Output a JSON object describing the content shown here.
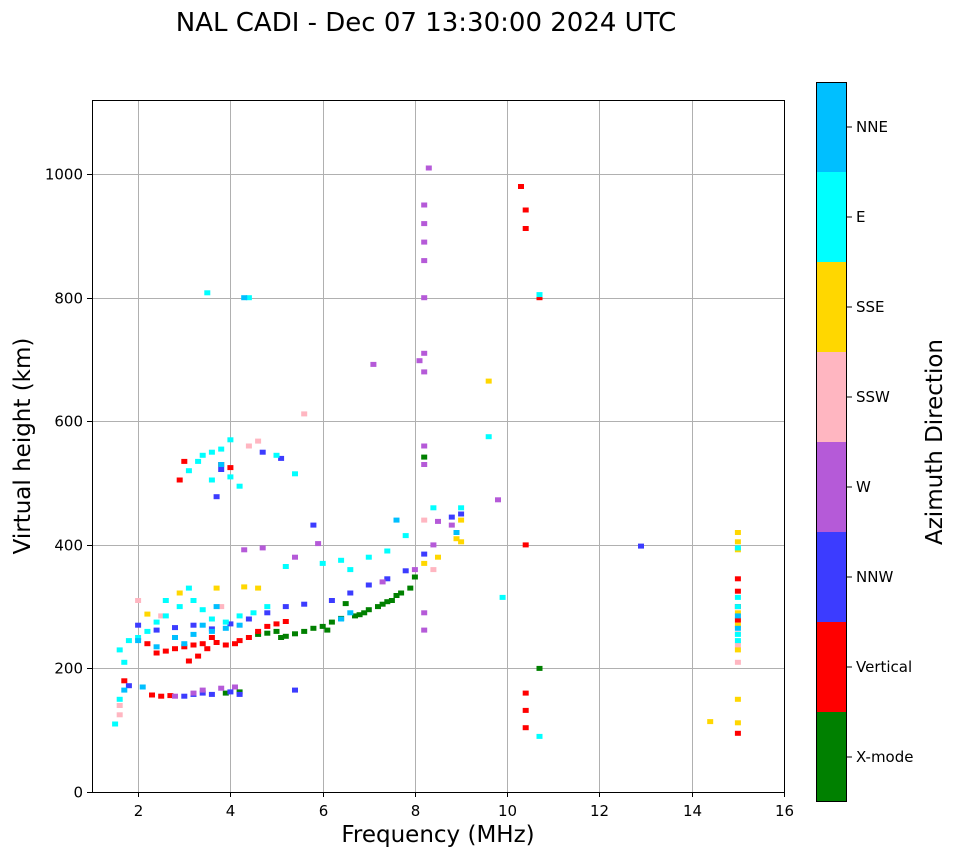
{
  "chart_data": {
    "type": "scatter",
    "title": "NAL CADI - Dec 07 13:30:00 2024 UTC",
    "xlabel": "Frequency (MHz)",
    "ylabel": "Virtual height (km)",
    "xlim": [
      1,
      16
    ],
    "ylim": [
      0,
      1120
    ],
    "xticks": [
      2,
      4,
      6,
      8,
      10,
      12,
      14,
      16
    ],
    "yticks": [
      0,
      200,
      400,
      600,
      800,
      1000
    ],
    "grid": true,
    "colorbar": {
      "label": "Azimuth Direction",
      "categories": [
        {
          "name": "X-mode",
          "color": "#008000"
        },
        {
          "name": "Vertical",
          "color": "#ff0000"
        },
        {
          "name": "NNW",
          "color": "#3c3cff"
        },
        {
          "name": "W",
          "color": "#b55ad8"
        },
        {
          "name": "SSW",
          "color": "#ffb6c1"
        },
        {
          "name": "SSE",
          "color": "#ffd700"
        },
        {
          "name": "E",
          "color": "#00ffff"
        },
        {
          "name": "NNE",
          "color": "#00bfff"
        }
      ]
    },
    "series": [
      {
        "name": "X-mode",
        "points": [
          [
            4.6,
            255
          ],
          [
            4.8,
            257
          ],
          [
            5.0,
            260
          ],
          [
            5.2,
            252
          ],
          [
            5.4,
            256
          ],
          [
            5.6,
            260
          ],
          [
            5.8,
            265
          ],
          [
            6.0,
            268
          ],
          [
            6.2,
            275
          ],
          [
            6.4,
            281
          ],
          [
            6.5,
            305
          ],
          [
            6.7,
            285
          ],
          [
            6.9,
            290
          ],
          [
            7.0,
            295
          ],
          [
            7.2,
            300
          ],
          [
            7.3,
            304
          ],
          [
            7.5,
            310
          ],
          [
            7.6,
            318
          ],
          [
            7.7,
            322
          ],
          [
            7.9,
            330
          ],
          [
            8.0,
            348
          ],
          [
            8.2,
            542
          ],
          [
            10.7,
            200
          ],
          [
            3.9,
            160
          ],
          [
            4.2,
            162
          ],
          [
            5.1,
            250
          ],
          [
            6.1,
            262
          ],
          [
            6.8,
            287
          ],
          [
            7.4,
            308
          ]
        ]
      },
      {
        "name": "Vertical",
        "points": [
          [
            2.4,
            225
          ],
          [
            2.6,
            228
          ],
          [
            2.8,
            232
          ],
          [
            3.0,
            235
          ],
          [
            3.1,
            212
          ],
          [
            3.2,
            238
          ],
          [
            3.4,
            240
          ],
          [
            3.5,
            232
          ],
          [
            3.7,
            242
          ],
          [
            3.9,
            238
          ],
          [
            4.1,
            240
          ],
          [
            4.2,
            245
          ],
          [
            4.4,
            250
          ],
          [
            4.6,
            260
          ],
          [
            4.8,
            268
          ],
          [
            5.0,
            272
          ],
          [
            5.2,
            276
          ],
          [
            1.7,
            180
          ],
          [
            2.3,
            157
          ],
          [
            2.5,
            155
          ],
          [
            2.7,
            156
          ],
          [
            3.0,
            535
          ],
          [
            3.8,
            530
          ],
          [
            4.0,
            525
          ],
          [
            2.9,
            505
          ],
          [
            10.3,
            980
          ],
          [
            10.4,
            942
          ],
          [
            10.4,
            912
          ],
          [
            10.4,
            400
          ],
          [
            10.4,
            160
          ],
          [
            10.4,
            132
          ],
          [
            10.4,
            104
          ],
          [
            10.7,
            800
          ],
          [
            15.0,
            95
          ],
          [
            15.0,
            278
          ],
          [
            15.0,
            300
          ],
          [
            15.0,
            325
          ],
          [
            15.0,
            345
          ],
          [
            3.3,
            220
          ],
          [
            3.6,
            250
          ],
          [
            2.2,
            240
          ]
        ]
      },
      {
        "name": "NNW",
        "points": [
          [
            3.0,
            155
          ],
          [
            3.2,
            158
          ],
          [
            3.4,
            160
          ],
          [
            3.6,
            158
          ],
          [
            4.0,
            162
          ],
          [
            4.2,
            158
          ],
          [
            5.4,
            165
          ],
          [
            2.0,
            270
          ],
          [
            2.4,
            262
          ],
          [
            2.8,
            266
          ],
          [
            3.2,
            270
          ],
          [
            3.6,
            264
          ],
          [
            4.0,
            272
          ],
          [
            4.4,
            280
          ],
          [
            4.8,
            290
          ],
          [
            5.2,
            300
          ],
          [
            5.6,
            304
          ],
          [
            6.2,
            310
          ],
          [
            6.6,
            322
          ],
          [
            7.0,
            335
          ],
          [
            7.4,
            345
          ],
          [
            7.8,
            358
          ],
          [
            8.2,
            385
          ],
          [
            8.8,
            445
          ],
          [
            9.0,
            450
          ],
          [
            12.9,
            398
          ],
          [
            3.8,
            522
          ],
          [
            3.7,
            478
          ],
          [
            4.7,
            550
          ],
          [
            1.8,
            172
          ],
          [
            5.1,
            540
          ],
          [
            5.8,
            432
          ]
        ]
      },
      {
        "name": "W",
        "points": [
          [
            8.3,
            1010
          ],
          [
            8.2,
            950
          ],
          [
            8.2,
            920
          ],
          [
            8.2,
            890
          ],
          [
            8.2,
            860
          ],
          [
            8.2,
            800
          ],
          [
            8.1,
            698
          ],
          [
            8.2,
            710
          ],
          [
            8.2,
            680
          ],
          [
            8.2,
            560
          ],
          [
            8.2,
            530
          ],
          [
            8.2,
            290
          ],
          [
            8.2,
            262
          ],
          [
            3.8,
            168
          ],
          [
            4.1,
            170
          ],
          [
            3.4,
            165
          ],
          [
            8.5,
            438
          ],
          [
            8.4,
            400
          ],
          [
            8.8,
            432
          ],
          [
            4.3,
            392
          ],
          [
            7.1,
            692
          ],
          [
            5.9,
            402
          ],
          [
            5.4,
            380
          ],
          [
            7.3,
            340
          ],
          [
            9.8,
            473
          ],
          [
            3.2,
            160
          ],
          [
            2.8,
            155
          ],
          [
            8.0,
            360
          ],
          [
            4.7,
            395
          ]
        ]
      },
      {
        "name": "SSW",
        "points": [
          [
            5.6,
            612
          ],
          [
            4.6,
            568
          ],
          [
            8.2,
            440
          ],
          [
            8.4,
            360
          ],
          [
            1.6,
            125
          ],
          [
            1.6,
            140
          ],
          [
            2.0,
            310
          ],
          [
            3.8,
            300
          ],
          [
            15.0,
            210
          ],
          [
            15.0,
            238
          ],
          [
            15.0,
            256
          ],
          [
            4.4,
            560
          ],
          [
            2.5,
            285
          ]
        ]
      },
      {
        "name": "SSE",
        "points": [
          [
            15.0,
            420
          ],
          [
            15.0,
            405
          ],
          [
            15.0,
            392
          ],
          [
            15.0,
            150
          ],
          [
            15.0,
            112
          ],
          [
            14.4,
            114
          ],
          [
            9.6,
            665
          ],
          [
            9.0,
            405
          ],
          [
            8.9,
            410
          ],
          [
            8.5,
            380
          ],
          [
            8.2,
            370
          ],
          [
            4.3,
            332
          ],
          [
            3.7,
            330
          ],
          [
            2.9,
            322
          ],
          [
            9.0,
            440
          ],
          [
            15.0,
            270
          ],
          [
            15.0,
            290
          ],
          [
            15.0,
            230
          ],
          [
            4.6,
            330
          ],
          [
            2.2,
            288
          ]
        ]
      },
      {
        "name": "E",
        "points": [
          [
            15.0,
            255
          ],
          [
            15.0,
            245
          ],
          [
            15.0,
            300
          ],
          [
            15.0,
            315
          ],
          [
            15.0,
            395
          ],
          [
            3.5,
            808
          ],
          [
            4.4,
            800
          ],
          [
            3.4,
            545
          ],
          [
            3.6,
            550
          ],
          [
            3.8,
            555
          ],
          [
            4.0,
            570
          ],
          [
            3.3,
            535
          ],
          [
            3.1,
            520
          ],
          [
            3.6,
            505
          ],
          [
            4.2,
            495
          ],
          [
            4.0,
            510
          ],
          [
            5.0,
            545
          ],
          [
            5.4,
            515
          ],
          [
            9.6,
            575
          ],
          [
            9.9,
            315
          ],
          [
            10.7,
            90
          ],
          [
            10.7,
            805
          ],
          [
            6.4,
            375
          ],
          [
            6.6,
            360
          ],
          [
            7.0,
            380
          ],
          [
            7.4,
            390
          ],
          [
            7.8,
            415
          ],
          [
            8.4,
            460
          ],
          [
            9.0,
            460
          ],
          [
            1.5,
            110
          ],
          [
            1.6,
            150
          ],
          [
            1.7,
            210
          ],
          [
            1.6,
            230
          ],
          [
            1.8,
            245
          ],
          [
            2.0,
            250
          ],
          [
            2.2,
            260
          ],
          [
            2.4,
            275
          ],
          [
            2.6,
            285
          ],
          [
            2.9,
            300
          ],
          [
            3.2,
            310
          ],
          [
            3.4,
            295
          ],
          [
            3.6,
            280
          ],
          [
            3.9,
            275
          ],
          [
            4.2,
            285
          ],
          [
            4.5,
            290
          ],
          [
            4.8,
            300
          ],
          [
            5.2,
            365
          ],
          [
            6.0,
            370
          ],
          [
            2.6,
            310
          ],
          [
            3.1,
            330
          ]
        ]
      },
      {
        "name": "NNE",
        "points": [
          [
            2.0,
            245
          ],
          [
            2.4,
            235
          ],
          [
            2.8,
            250
          ],
          [
            3.2,
            255
          ],
          [
            3.6,
            260
          ],
          [
            3.9,
            265
          ],
          [
            4.2,
            270
          ],
          [
            3.4,
            270
          ],
          [
            6.4,
            280
          ],
          [
            6.6,
            290
          ],
          [
            7.6,
            440
          ],
          [
            8.9,
            420
          ],
          [
            4.3,
            800
          ],
          [
            3.8,
            530
          ],
          [
            1.7,
            165
          ],
          [
            2.1,
            170
          ],
          [
            15.0,
            265
          ],
          [
            15.0,
            285
          ],
          [
            3.0,
            240
          ],
          [
            3.7,
            300
          ]
        ]
      }
    ]
  }
}
